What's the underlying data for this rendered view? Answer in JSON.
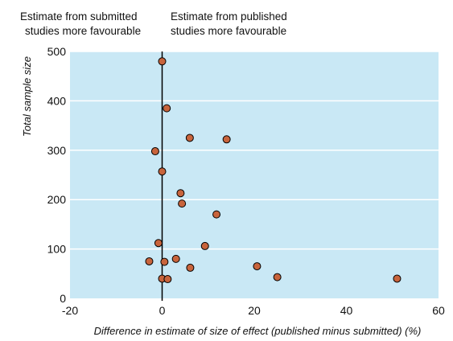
{
  "chart_data": {
    "type": "scatter",
    "annotations": {
      "left_line1": "Estimate from submitted",
      "left_line2": "studies more favourable",
      "right_line1": "Estimate from published",
      "right_line2": "studies more favourable"
    },
    "xlabel": "Difference in estimate of size of effect (published minus submitted) (%)",
    "ylabel": "Total sample size",
    "xlim": [
      -20,
      60
    ],
    "ylim": [
      0,
      500
    ],
    "x_ticks": [
      -20,
      0,
      20,
      40,
      60
    ],
    "y_ticks": [
      0,
      100,
      200,
      300,
      400,
      500
    ],
    "grid": "horizontal",
    "reference_line_x": 0,
    "colors": {
      "plot_background": "#c9e8f5",
      "grid": "#ffffff",
      "marker_fill": "#c8643c",
      "marker_edge": "#000000"
    },
    "points": [
      {
        "x": 0,
        "y": 480
      },
      {
        "x": 1,
        "y": 385
      },
      {
        "x": -1.5,
        "y": 298
      },
      {
        "x": 6,
        "y": 325
      },
      {
        "x": 14,
        "y": 322
      },
      {
        "x": 0,
        "y": 257
      },
      {
        "x": 4,
        "y": 213
      },
      {
        "x": 4.3,
        "y": 192
      },
      {
        "x": 11.8,
        "y": 170
      },
      {
        "x": -0.8,
        "y": 112
      },
      {
        "x": 9.3,
        "y": 106
      },
      {
        "x": 3,
        "y": 80
      },
      {
        "x": -2.8,
        "y": 75
      },
      {
        "x": 0.5,
        "y": 74
      },
      {
        "x": 6.1,
        "y": 62
      },
      {
        "x": 20.6,
        "y": 65
      },
      {
        "x": 25,
        "y": 43
      },
      {
        "x": 0,
        "y": 40
      },
      {
        "x": 1.2,
        "y": 39
      },
      {
        "x": 51,
        "y": 40
      }
    ]
  }
}
